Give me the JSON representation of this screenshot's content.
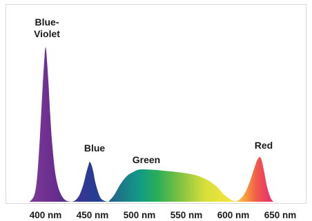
{
  "chart_data": {
    "type": "area",
    "x_ticks": [
      "400 nm",
      "450 nm",
      "500 nm",
      "550 nm",
      "600 nm",
      "650 nm"
    ],
    "x_tick_values": [
      400,
      450,
      500,
      550,
      600,
      650
    ],
    "xlim": [
      380,
      665
    ],
    "ylim": [
      0,
      1
    ],
    "grid": false,
    "peaks": [
      {
        "label_lines": [
          "Blue-",
          "Violet"
        ],
        "x": 400,
        "y": 0.95
      },
      {
        "label_lines": [
          "Blue"
        ],
        "x": 447,
        "y": 0.245
      },
      {
        "label_lines": [
          "Green"
        ],
        "x": 500,
        "y": 0.198
      },
      {
        "label_lines": [
          "Red"
        ],
        "x": 628,
        "y": 0.275
      }
    ],
    "series": [
      {
        "x": [
          383,
          388,
          391,
          394,
          397,
          399,
          400,
          401,
          403,
          405,
          407,
          410,
          413,
          416,
          420,
          424,
          428,
          432
        ],
        "y": [
          0,
          0.04,
          0.15,
          0.4,
          0.72,
          0.9,
          0.95,
          0.91,
          0.74,
          0.53,
          0.36,
          0.19,
          0.1,
          0.05,
          0.015,
          0.003,
          0,
          0
        ],
        "color": "#6d2f91"
      },
      {
        "x": [
          428,
          432,
          436,
          440,
          443,
          446,
          447,
          449,
          451,
          453,
          456,
          459,
          463,
          467
        ],
        "y": [
          0,
          0.01,
          0.04,
          0.1,
          0.17,
          0.23,
          0.245,
          0.225,
          0.18,
          0.12,
          0.06,
          0.02,
          0.005,
          0
        ],
        "color": "#2c3c96"
      },
      {
        "x": [
          467,
          473,
          480,
          487,
          494,
          500,
          510,
          520,
          535,
          550,
          562,
          572,
          582,
          590,
          598,
          603
        ],
        "y": [
          0,
          0.04,
          0.11,
          0.16,
          0.185,
          0.198,
          0.198,
          0.194,
          0.186,
          0.175,
          0.16,
          0.135,
          0.095,
          0.045,
          0.01,
          0
        ],
        "color": "#36a84a"
      },
      {
        "x": [
          603,
          608,
          613,
          618,
          622,
          625,
          627,
          628,
          630,
          633,
          636,
          640,
          643
        ],
        "y": [
          0,
          0.02,
          0.06,
          0.13,
          0.2,
          0.25,
          0.27,
          0.275,
          0.26,
          0.18,
          0.09,
          0.02,
          0
        ],
        "color": "#e8305a"
      }
    ],
    "gradient_colors": [
      {
        "x": 385,
        "color": "#7a3a96"
      },
      {
        "x": 410,
        "color": "#6a2c8e"
      },
      {
        "x": 430,
        "color": "#3d3590"
      },
      {
        "x": 455,
        "color": "#243d94"
      },
      {
        "x": 475,
        "color": "#1f6e88"
      },
      {
        "x": 500,
        "color": "#129a86"
      },
      {
        "x": 520,
        "color": "#2dae57"
      },
      {
        "x": 545,
        "color": "#86c440"
      },
      {
        "x": 570,
        "color": "#d8df3c"
      },
      {
        "x": 598,
        "color": "#f5e43a"
      },
      {
        "x": 612,
        "color": "#f7a13f"
      },
      {
        "x": 625,
        "color": "#f05a49"
      },
      {
        "x": 640,
        "color": "#e8306e"
      }
    ]
  }
}
